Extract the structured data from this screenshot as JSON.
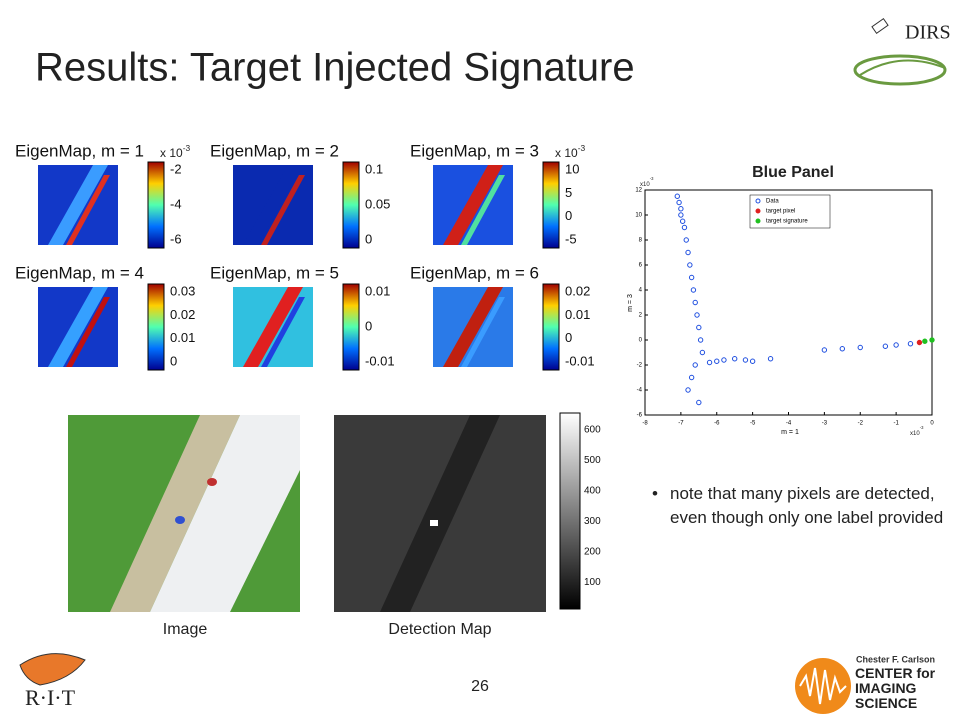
{
  "header": {
    "title": "Results: Target Injected Signature",
    "logo": "DIRS"
  },
  "eigenmaps": {
    "panels": [
      {
        "label": "EigenMap, m = 1",
        "base": "x 10",
        "power": "-3",
        "ticks": [
          "-2",
          "-4",
          "-6"
        ]
      },
      {
        "label": "EigenMap, m = 2",
        "ticks": [
          "0.1",
          "0.05",
          "0"
        ]
      },
      {
        "label": "EigenMap, m = 3",
        "base": "x 10",
        "power": "-3",
        "ticks": [
          "10",
          "5",
          "0",
          "-5"
        ]
      },
      {
        "label": "EigenMap, m = 4",
        "ticks": [
          "0.03",
          "0.02",
          "0.01",
          "0"
        ]
      },
      {
        "label": "EigenMap, m = 5",
        "ticks": [
          "0.01",
          "0",
          "-0.01"
        ]
      },
      {
        "label": "EigenMap, m = 6",
        "ticks": [
          "0.02",
          "0.01",
          "0",
          "-0.01"
        ]
      }
    ]
  },
  "images": {
    "image_caption": "Image",
    "detection_caption": "Detection Map",
    "detection_ticks": [
      "600",
      "500",
      "400",
      "300",
      "200",
      "100"
    ]
  },
  "blue_panel": {
    "type": "scatter",
    "title": "Blue Panel",
    "xlabel": "m = 1",
    "ylabel": "m = 3",
    "x_base": "x10",
    "x_power": "-3",
    "y_base": "x10",
    "y_power": "-3",
    "xlim": [
      -8,
      0
    ],
    "ylim": [
      -6,
      12
    ],
    "xticks": [
      -8,
      -7,
      -6,
      -5,
      -4,
      -3,
      -2,
      -1,
      0
    ],
    "yticks": [
      -6,
      -4,
      -2,
      0,
      2,
      4,
      6,
      8,
      10,
      12
    ],
    "series": [
      {
        "name": "Data",
        "color": "#1f4fe0",
        "x": [
          -7.1,
          -7.05,
          -7.0,
          -7.0,
          -6.95,
          -6.9,
          -6.85,
          -6.8,
          -6.75,
          -6.7,
          -6.65,
          -6.6,
          -6.55,
          -6.5,
          -6.45,
          -6.4,
          -6.6,
          -6.7,
          -6.8,
          -6.5,
          -6.2,
          -6.0,
          -5.8,
          -5.5,
          -5.2,
          -5.0,
          -4.5,
          -3.0,
          -2.5,
          -2.0,
          -1.3,
          -1.0,
          -0.6
        ],
        "y": [
          11.5,
          11,
          10.5,
          10,
          9.5,
          9,
          8,
          7,
          6,
          5,
          4,
          3,
          2,
          1,
          0,
          -1,
          -2,
          -3,
          -4,
          -5,
          -1.8,
          -1.7,
          -1.6,
          -1.5,
          -1.6,
          -1.7,
          -1.5,
          -0.8,
          -0.7,
          -0.6,
          -0.5,
          -0.4,
          -0.3
        ]
      },
      {
        "name": "target pixel",
        "color": "#e02020",
        "x": [
          -0.35
        ],
        "y": [
          -0.2
        ]
      },
      {
        "name": "target signature",
        "color": "#20c020",
        "x": [
          -0.2,
          0
        ],
        "y": [
          -0.1,
          0
        ]
      }
    ]
  },
  "bullet": "note that many pixels are detected, even though only one label provided",
  "footer": {
    "page": "26",
    "rit": "R·I·T",
    "center_top": "Chester F. Carlson",
    "center_main": "CENTER for IMAGING SCIENCE"
  }
}
